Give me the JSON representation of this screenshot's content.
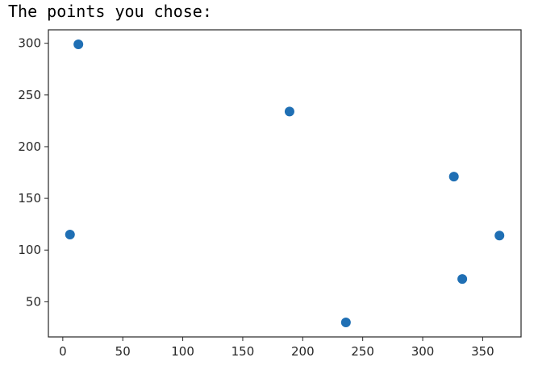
{
  "output": {
    "text": "The points you chose:"
  },
  "chart_data": {
    "type": "scatter",
    "title": "",
    "xlabel": "",
    "ylabel": "",
    "xlim": [
      -12,
      382
    ],
    "ylim": [
      16,
      313
    ],
    "xticks": [
      0,
      50,
      100,
      150,
      200,
      250,
      300,
      350
    ],
    "yticks": [
      50,
      100,
      150,
      200,
      250,
      300
    ],
    "grid": false,
    "marker_color": "#1f6fb4",
    "series": [
      {
        "x": [
          13,
          6,
          189,
          236,
          326,
          333,
          364
        ],
        "y": [
          299,
          115,
          234,
          30,
          171,
          72,
          114
        ]
      }
    ]
  }
}
